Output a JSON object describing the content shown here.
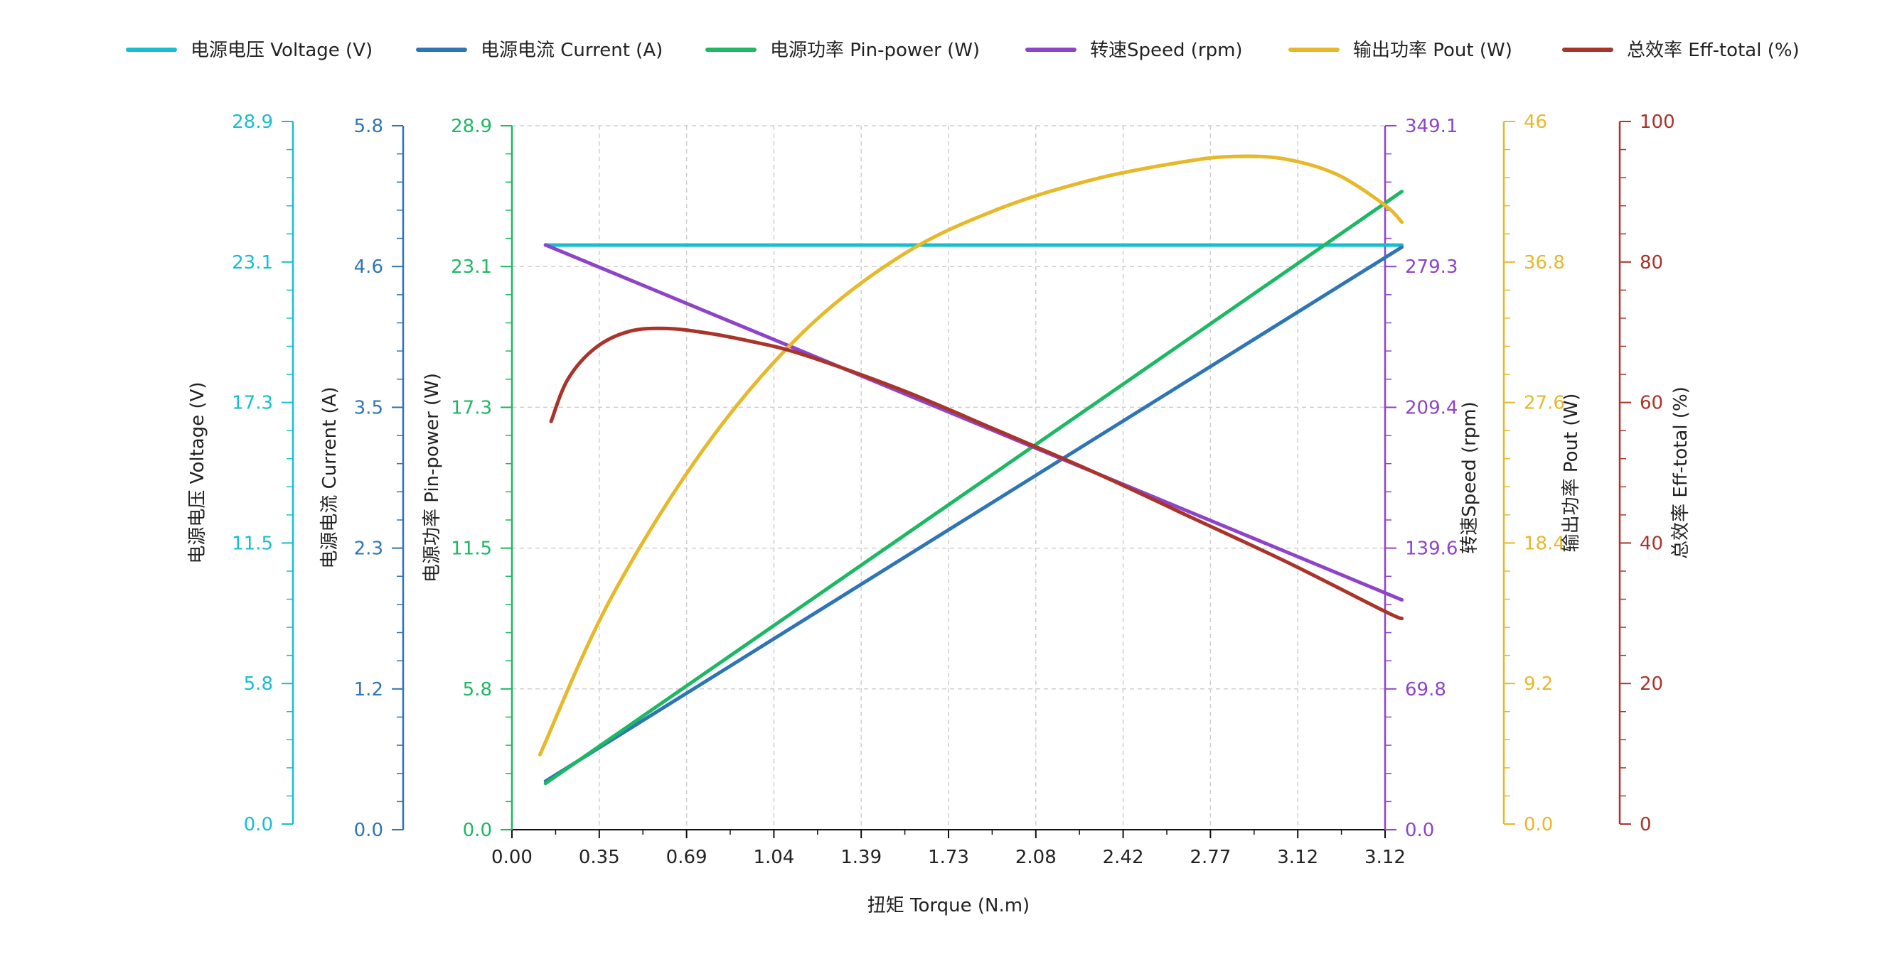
{
  "chart_data": {
    "type": "line",
    "x": {
      "label": "扭矩 Torque (N.m)",
      "range": [
        0,
        3.12
      ],
      "tick_labels": [
        "0.00",
        "0.35",
        "0.69",
        "1.04",
        "1.39",
        "1.73",
        "2.08",
        "2.42",
        "2.77",
        "3.12",
        "3.12"
      ],
      "grid": true
    },
    "y_axes": [
      {
        "id": "voltage",
        "label": "电源电压 Voltage (V)",
        "range": [
          0,
          28.9
        ],
        "ticks": [
          "0.0",
          "5.8",
          "11.5",
          "17.3",
          "23.1",
          "28.9"
        ],
        "color": "#17becf",
        "side": "left"
      },
      {
        "id": "current",
        "label": "电源电流 Current (A)",
        "range": [
          0,
          5.8
        ],
        "ticks": [
          "0.0",
          "1.2",
          "2.3",
          "3.5",
          "4.6",
          "5.8"
        ],
        "color": "#2e75b6",
        "side": "left"
      },
      {
        "id": "pin",
        "label": "电源功率 Pin-power (W)",
        "range": [
          0,
          28.9
        ],
        "ticks": [
          "0.0",
          "5.8",
          "11.5",
          "17.3",
          "23.1",
          "28.9"
        ],
        "color": "#1db863",
        "side": "left"
      },
      {
        "id": "speed",
        "label": "转速Speed (rpm)",
        "range": [
          0,
          349.1
        ],
        "ticks": [
          "0.0",
          "69.8",
          "139.6",
          "209.4",
          "279.3",
          "349.1"
        ],
        "color": "#8e44c8",
        "side": "right"
      },
      {
        "id": "pout",
        "label": "输出功率 Pout (W)",
        "range": [
          0,
          46
        ],
        "ticks": [
          "0.0",
          "9.2",
          "18.4",
          "27.6",
          "36.8",
          "46"
        ],
        "color": "#e6b82a",
        "side": "right"
      },
      {
        "id": "eff",
        "label": "总效率 Eff-total (%)",
        "range": [
          0,
          100
        ],
        "ticks": [
          "0",
          "20",
          "40",
          "60",
          "80",
          "100"
        ],
        "color": "#a8342a",
        "side": "right"
      }
    ],
    "series": [
      {
        "name": "电源电压 Voltage (V)",
        "axis": "voltage",
        "color": "#17becf",
        "x": [
          0.12,
          3.18
        ],
        "y": [
          24.0,
          24.0
        ]
      },
      {
        "name": "电源电流 Current (A)",
        "axis": "current",
        "color": "#2e75b6",
        "x": [
          0.12,
          3.18
        ],
        "y": [
          0.4,
          4.8
        ]
      },
      {
        "name": "电源功率 Pin-power (W)",
        "axis": "pin",
        "color": "#1db863",
        "x": [
          0.12,
          3.18
        ],
        "y": [
          1.9,
          26.2
        ]
      },
      {
        "name": "转速Speed (rpm)",
        "axis": "speed",
        "color": "#8e44c8",
        "x": [
          0.12,
          3.18
        ],
        "y": [
          290,
          114
        ]
      },
      {
        "name": "输出功率 Pout (W)",
        "axis": "pout",
        "color": "#e6b82a",
        "x": [
          0.1,
          0.35,
          0.69,
          1.04,
          1.39,
          1.73,
          2.08,
          2.42,
          2.6,
          2.77,
          2.95,
          3.12,
          3.18
        ],
        "y": [
          4.9,
          15.0,
          25.0,
          32.5,
          37.5,
          40.5,
          42.5,
          43.7,
          44.0,
          43.8,
          42.8,
          40.8,
          39.7
        ]
      },
      {
        "name": "总效率 Eff-total (%)",
        "axis": "eff",
        "color": "#a8342a",
        "x": [
          0.14,
          0.2,
          0.3,
          0.42,
          0.55,
          0.69,
          0.85,
          1.04,
          1.39,
          1.73,
          2.08,
          2.42,
          2.77,
          3.12,
          3.18
        ],
        "y": [
          58.0,
          64.0,
          68.5,
          70.8,
          71.2,
          70.6,
          69.4,
          67.5,
          62.5,
          56.8,
          50.8,
          44.5,
          38.0,
          31.0,
          30.0
        ]
      }
    ],
    "legend": {
      "placement": "top"
    }
  }
}
